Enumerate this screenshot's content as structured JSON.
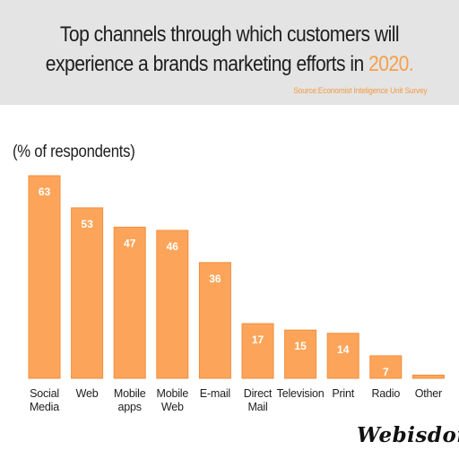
{
  "header": {
    "title_line1": "Top channels through which customers will",
    "title_line2": "experience a brands marketing efforts in",
    "title_year": "2020.",
    "source": "Source:Economist Inteligence Unit Survey"
  },
  "brand": "Webisdom",
  "colors": {
    "bar": "#fca55a",
    "bar_edge": "#f28e3c",
    "header_bg": "#e4e4e4",
    "accent": "#f5a04a"
  },
  "chart_data": {
    "type": "bar",
    "ylabel": "(% of respondents)",
    "categories": [
      [
        "Social",
        "Media"
      ],
      [
        "Web"
      ],
      [
        "Mobile",
        "apps"
      ],
      [
        "Mobile",
        "Web"
      ],
      [
        "E-mail"
      ],
      [
        "Direct",
        "Mail"
      ],
      [
        "Television"
      ],
      [
        "Print"
      ],
      [
        "Radio"
      ],
      [
        "Other"
      ]
    ],
    "values": [
      63,
      53,
      47,
      46,
      36,
      17,
      15,
      14,
      7,
      1
    ],
    "ylim": [
      0,
      63
    ],
    "grid": false,
    "legend": "none",
    "data_labels": true
  }
}
